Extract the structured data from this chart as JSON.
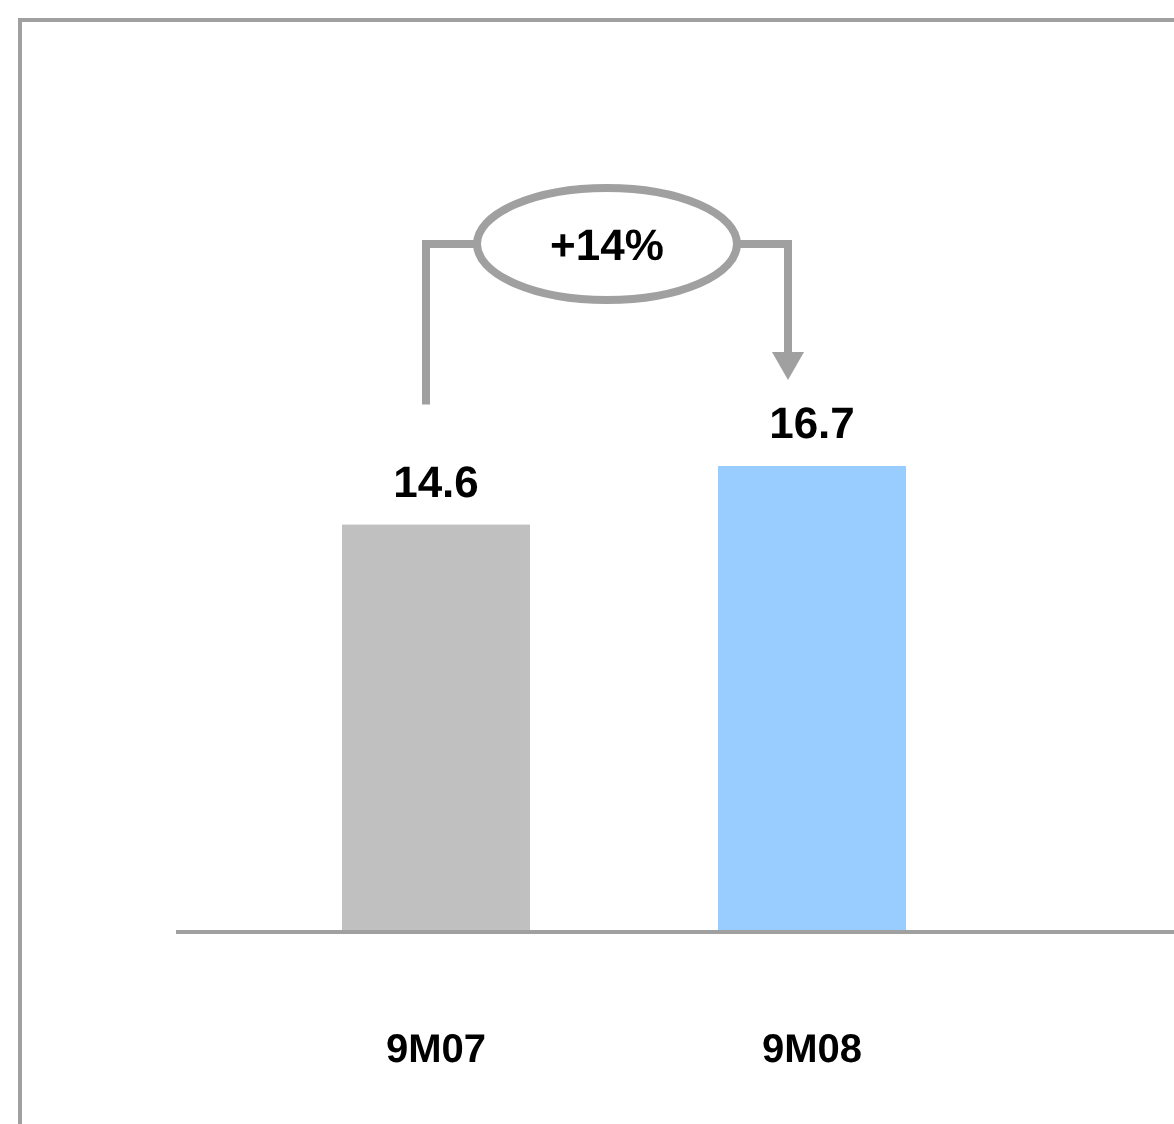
{
  "chart_data": {
    "type": "bar",
    "categories": [
      "9M07",
      "9M08"
    ],
    "values": [
      14.6,
      16.7
    ],
    "colors": [
      "#c0c0c0",
      "#99ccff"
    ],
    "data_labels": true,
    "annotations": [
      "+14%"
    ]
  }
}
